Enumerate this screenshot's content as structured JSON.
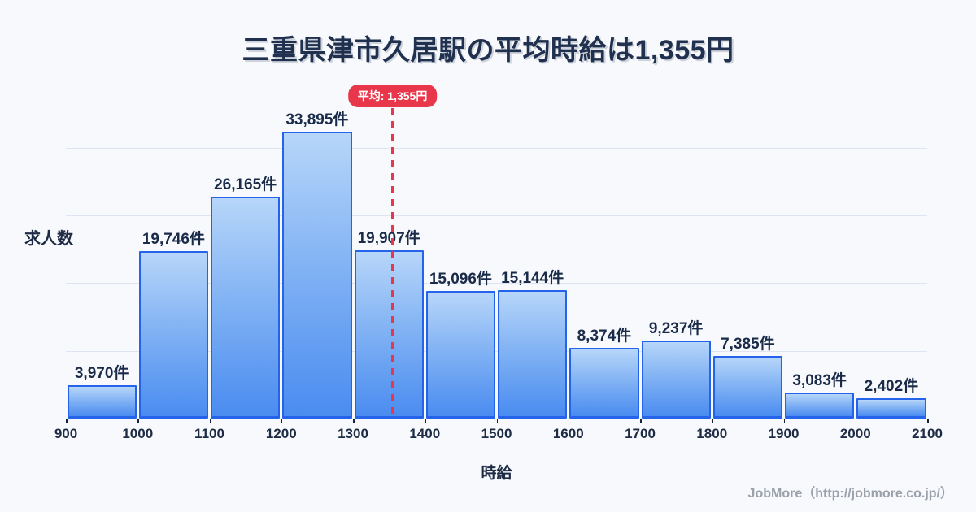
{
  "title": "三重県津市久居駅の平均時給は1,355円",
  "y_axis_label": "求人数",
  "x_axis_label": "時給",
  "footer": "JobMore（http://jobmore.co.jp/）",
  "average_badge_label": "平均: 1,355円",
  "colors": {
    "background": "#f7f9fc",
    "title_text": "#20304f",
    "bar_border": "#2563eb",
    "bar_fill_top": "#b7d6f9",
    "bar_fill_bottom": "#4a8cf0",
    "average_red": "#e8374a",
    "gridline": "#dfe5f0",
    "footer_text": "#9aa1ab"
  },
  "chart_data": {
    "type": "bar",
    "title": "三重県津市久居駅の平均時給は1,355円",
    "xlabel": "時給",
    "ylabel": "求人数",
    "bin_edges": [
      900,
      1000,
      1100,
      1200,
      1300,
      1400,
      1500,
      1600,
      1700,
      1800,
      1900,
      2000,
      2100
    ],
    "values": [
      3970,
      19746,
      26165,
      33895,
      19907,
      15096,
      15144,
      8374,
      9237,
      7385,
      3083,
      2402
    ],
    "value_labels": [
      "3,970件",
      "19,746件",
      "26,165件",
      "33,895件",
      "19,907件",
      "15,096件",
      "15,144件",
      "8,374件",
      "9,237件",
      "7,385件",
      "3,083件",
      "2,402件"
    ],
    "average": 1355,
    "average_label": "平均: 1,355円",
    "xlim": [
      900,
      2100
    ],
    "ylim": [
      0,
      36000
    ],
    "gridlines_y": [
      8000,
      16000,
      24000,
      32000
    ],
    "grid": true,
    "legend": false
  }
}
